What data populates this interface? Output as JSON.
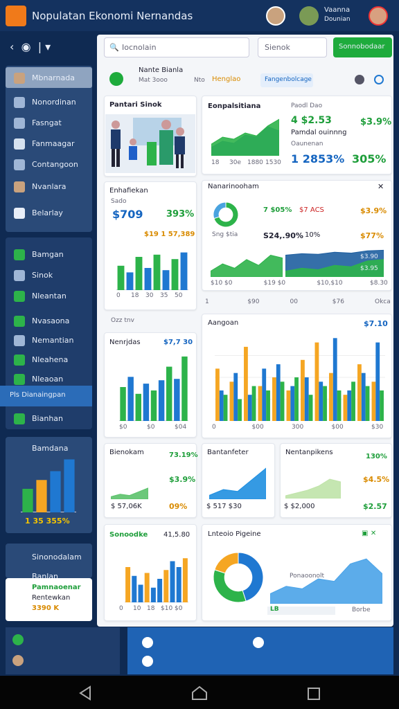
{
  "header": {
    "title": "Nopulatan Ekonomi Nernandas",
    "user": "Vaanna",
    "user_sub": "Dounian"
  },
  "sidebar": {
    "top": [
      "Mbnarnada",
      "Nonordinan",
      "Fasngat",
      "Fanmaagar",
      "Contangoon",
      "Nvanlara",
      "Belarlay"
    ],
    "mid": [
      "Bamgan",
      "Sinok",
      "Nleantan",
      "Nvasaona",
      "Nemantian",
      "Nleahena",
      "Nleaoan",
      "Pls Dianaingpan",
      "Bianhan"
    ],
    "promo_title": "Bamdana",
    "promo_value": "1 35 355%",
    "bottom": [
      "Sinonodalam",
      "Banlan"
    ],
    "card": {
      "title": "Pamnaoenar",
      "sub": "Rentewkan",
      "value": "3390 K"
    }
  },
  "search": {
    "placeholder": "Iocnolain",
    "filter": "Sienok",
    "button": "Sonnobodaar"
  },
  "profile": {
    "name": "Nante Bianla",
    "sub": "Mat 3ooo",
    "tag1": "Nto",
    "tag2": "Henglao",
    "tag3": "Fangenbolcage"
  },
  "cards": {
    "c1": {
      "title": "Pantari Sinok"
    },
    "c2": {
      "title": "Eonpalsitiana",
      "sub": "Paodl Dao",
      "v1": "4 $2.53",
      "v2": "$3.9%",
      "label1": "Pamdal ouinnng",
      "label2": "Oaunenan",
      "v3": "1 2853%",
      "v4": "305%",
      "x": [
        "18",
        "30e",
        "1880",
        "1530"
      ]
    },
    "c3": {
      "title": "Enhafiekan",
      "sub": "Sado",
      "v1": "$709",
      "v2": "393%",
      "v3": "$19 1 57,389",
      "x": [
        "0",
        "18",
        "30",
        "35",
        "50"
      ]
    },
    "c4": {
      "title": "Nanarinooham",
      "l1": "7 $05%",
      "l2": "$7 ACS",
      "v1": "$3.9%",
      "l3": "Sng $tia",
      "v2": "S24,.90%",
      "v3": "10%",
      "v4": "$77%",
      "v5": "$3.90",
      "v6": "$3.95",
      "x": [
        "$10 $0",
        "$19 $0",
        "$10,$10",
        "$8.30"
      ],
      "axis": [
        "1",
        "$90",
        "00",
        "$76",
        "Okca"
      ]
    },
    "c5": {
      "title": "Aangoan",
      "value": "$7.10",
      "x": [
        "0",
        "$00",
        "300",
        "$00",
        "$30"
      ]
    },
    "c6": {
      "caption": "Ozz tnv",
      "title": "Nenrjdas",
      "value": "$7,7 30",
      "x": [
        "$0",
        "$0",
        "$04"
      ]
    },
    "c7": {
      "title": "Bienokam",
      "v1": "73.19%",
      "v2": "$3.9%",
      "v3": "$ 57,06K",
      "v4": "09%"
    },
    "c8": {
      "title": "Bantanfeter",
      "v1": "$ 517 $30"
    },
    "c9": {
      "title": "Nentanpikens",
      "v1": "130%",
      "v2": "$4.5%",
      "v3": "$ $2,000",
      "v4": "$2.57"
    },
    "c10": {
      "title": "Sonoodke",
      "value": "41,5.80",
      "x": [
        "0",
        "10",
        "18",
        "$10",
        "$0"
      ]
    },
    "c11": {
      "title": "Lnteoio Pigeine",
      "note": "Ponaoonolt",
      "legend": "LB",
      "footer": "Borbe"
    }
  },
  "charts": [
    {
      "type": "area",
      "ylim": [
        0,
        100
      ],
      "series": [
        {
          "color": "#1f5fc9",
          "values": [
            20,
            35,
            30,
            50,
            45,
            70,
            60
          ]
        },
        {
          "color": "#2db34a",
          "values": [
            28,
            45,
            40,
            55,
            48,
            72,
            88
          ]
        }
      ]
    },
    {
      "type": "bar",
      "ylim": [
        0,
        100
      ],
      "colors": [
        "#2db34a",
        "#1f78d1"
      ],
      "values": [
        55,
        40,
        75,
        50,
        80,
        45,
        70,
        85
      ]
    },
    {
      "type": "donut",
      "values": [
        70,
        30
      ],
      "colors": [
        "#2db34a",
        "#4aa3df"
      ]
    },
    {
      "type": "area",
      "ylim": [
        0,
        100
      ],
      "series": [
        {
          "color": "#2db34a",
          "values": [
            20,
            45,
            30,
            60,
            40,
            75,
            65
          ]
        }
      ]
    },
    {
      "type": "area",
      "ylim": [
        0,
        100
      ],
      "series": [
        {
          "color": "#1f5fa0",
          "values": [
            75,
            80,
            78,
            85,
            82,
            90,
            92
          ]
        },
        {
          "color": "#2db34a",
          "values": [
            20,
            30,
            25,
            40,
            35,
            55,
            60
          ]
        }
      ]
    },
    {
      "type": "grouped",
      "ylim": [
        0,
        100
      ],
      "series": [
        {
          "color": "#f5a623",
          "values": [
            60,
            45,
            85,
            40,
            50,
            35,
            70,
            90,
            55,
            30,
            65,
            45
          ]
        },
        {
          "color": "#1f78d1",
          "values": [
            35,
            55,
            30,
            60,
            65,
            40,
            50,
            45,
            95,
            35,
            55,
            90
          ]
        },
        {
          "color": "#2db34a",
          "values": [
            30,
            25,
            40,
            35,
            45,
            50,
            30,
            40,
            35,
            45,
            40,
            35
          ]
        }
      ]
    },
    {
      "type": "bar",
      "ylim": [
        0,
        100
      ],
      "colors": [
        "#2db34a",
        "#1f78d1"
      ],
      "values": [
        50,
        65,
        40,
        55,
        45,
        60,
        80,
        62,
        95
      ]
    },
    {
      "type": "area",
      "ylim": [
        0,
        100
      ],
      "series": [
        {
          "color": "#5cc26b",
          "values": [
            10,
            20,
            15,
            30,
            45
          ]
        }
      ]
    },
    {
      "type": "area",
      "ylim": [
        0,
        100
      ],
      "series": [
        {
          "color": "#1f8fe0",
          "values": [
            10,
            25,
            20,
            50,
            80
          ]
        }
      ]
    },
    {
      "type": "area",
      "ylim": [
        0,
        100
      ],
      "series": [
        {
          "color": "#bfe3a8",
          "values": [
            10,
            20,
            30,
            45,
            70,
            60
          ]
        }
      ]
    },
    {
      "type": "bar",
      "ylim": [
        0,
        100
      ],
      "colors": [
        "#f5a623",
        "#1f78d1",
        "#1f78d1"
      ],
      "values": [
        60,
        45,
        30,
        50,
        25,
        40,
        55,
        70,
        60,
        75
      ]
    },
    {
      "type": "donut",
      "values": [
        45,
        35,
        20
      ],
      "colors": [
        "#1f78d1",
        "#2db34a",
        "#f5a623"
      ]
    },
    {
      "type": "area",
      "ylim": [
        0,
        100
      ],
      "series": [
        {
          "color": "#4aa3e8",
          "values": [
            20,
            35,
            30,
            50,
            45,
            80,
            90,
            60
          ]
        }
      ]
    },
    {
      "type": "bar",
      "ylim": [
        0,
        100
      ],
      "colors": [
        "#2db34a",
        "#f5a623",
        "#1f78d1",
        "#1f78d1"
      ],
      "values": [
        40,
        55,
        70,
        90
      ]
    }
  ]
}
